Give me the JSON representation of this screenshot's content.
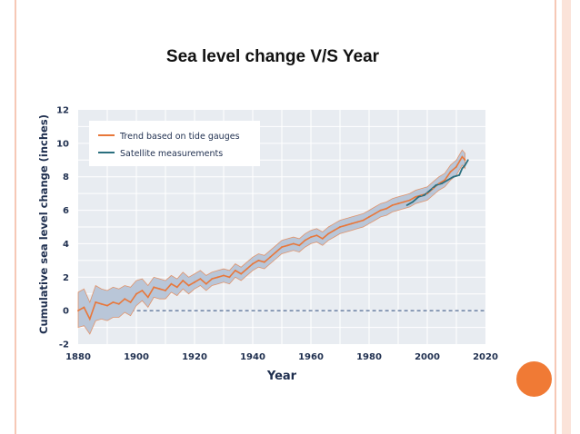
{
  "slide": {
    "title": "Sea level change V/S Year"
  },
  "colors": {
    "trend": "#e8773a",
    "band": "#b9c6d8",
    "satellite": "#2a6f7e",
    "plot_bg": "#e8ecf1",
    "grid": "#ffffff",
    "baseline": "#2b4a7a",
    "accent": "#f07a35",
    "border": "#f6c8b6"
  },
  "chart_data": {
    "type": "line",
    "title": "",
    "xlabel": "Year",
    "ylabel": "Cumulative sea level change (inches)",
    "xlim": [
      1880,
      2020
    ],
    "ylim": [
      -2,
      12
    ],
    "xticks": [
      1880,
      1900,
      1920,
      1940,
      1960,
      1980,
      2000,
      2020
    ],
    "yticks": [
      -2,
      0,
      2,
      4,
      6,
      8,
      10,
      12
    ],
    "grid": true,
    "legend_position": "top-left",
    "baseline": 0,
    "series": [
      {
        "name": "Trend based on tide gauges",
        "x": [
          1880,
          1882,
          1884,
          1886,
          1888,
          1890,
          1892,
          1894,
          1896,
          1898,
          1900,
          1902,
          1904,
          1906,
          1908,
          1910,
          1912,
          1914,
          1916,
          1918,
          1920,
          1922,
          1924,
          1926,
          1928,
          1930,
          1932,
          1934,
          1936,
          1938,
          1940,
          1942,
          1944,
          1946,
          1948,
          1950,
          1952,
          1954,
          1956,
          1958,
          1960,
          1962,
          1964,
          1966,
          1968,
          1970,
          1972,
          1974,
          1976,
          1978,
          1980,
          1982,
          1984,
          1986,
          1988,
          1990,
          1992,
          1994,
          1996,
          1998,
          2000,
          2002,
          2004,
          2006,
          2008,
          2010,
          2012,
          2013
        ],
        "values": [
          0.0,
          0.2,
          -0.5,
          0.5,
          0.4,
          0.3,
          0.5,
          0.4,
          0.7,
          0.5,
          1.0,
          1.2,
          0.8,
          1.4,
          1.3,
          1.2,
          1.6,
          1.4,
          1.8,
          1.5,
          1.7,
          1.9,
          1.6,
          1.9,
          2.0,
          2.1,
          2.0,
          2.4,
          2.2,
          2.5,
          2.8,
          3.0,
          2.9,
          3.2,
          3.5,
          3.8,
          3.9,
          4.0,
          3.9,
          4.2,
          4.4,
          4.5,
          4.3,
          4.6,
          4.8,
          5.0,
          5.1,
          5.2,
          5.3,
          5.4,
          5.6,
          5.8,
          6.0,
          6.1,
          6.3,
          6.4,
          6.5,
          6.6,
          6.8,
          6.9,
          7.0,
          7.3,
          7.6,
          7.8,
          8.3,
          8.6,
          9.2,
          9.0
        ],
        "lower": [
          -1.0,
          -0.9,
          -1.4,
          -0.6,
          -0.5,
          -0.6,
          -0.4,
          -0.4,
          -0.1,
          -0.3,
          0.3,
          0.6,
          0.2,
          0.8,
          0.7,
          0.7,
          1.1,
          0.9,
          1.3,
          1.0,
          1.3,
          1.5,
          1.2,
          1.5,
          1.6,
          1.7,
          1.6,
          2.0,
          1.8,
          2.1,
          2.4,
          2.6,
          2.5,
          2.8,
          3.1,
          3.4,
          3.5,
          3.6,
          3.5,
          3.8,
          4.0,
          4.1,
          3.9,
          4.2,
          4.4,
          4.6,
          4.7,
          4.8,
          4.9,
          5.0,
          5.2,
          5.4,
          5.6,
          5.7,
          5.9,
          6.0,
          6.1,
          6.2,
          6.4,
          6.5,
          6.6,
          6.9,
          7.2,
          7.4,
          7.8,
          8.1,
          8.7,
          8.5
        ],
        "upper": [
          1.1,
          1.3,
          0.5,
          1.5,
          1.3,
          1.2,
          1.4,
          1.3,
          1.5,
          1.4,
          1.8,
          1.9,
          1.5,
          2.0,
          1.9,
          1.8,
          2.1,
          1.9,
          2.3,
          2.0,
          2.2,
          2.4,
          2.1,
          2.3,
          2.4,
          2.5,
          2.4,
          2.8,
          2.6,
          2.9,
          3.2,
          3.4,
          3.3,
          3.6,
          3.9,
          4.2,
          4.3,
          4.4,
          4.3,
          4.6,
          4.8,
          4.9,
          4.7,
          5.0,
          5.2,
          5.4,
          5.5,
          5.6,
          5.7,
          5.8,
          6.0,
          6.2,
          6.4,
          6.5,
          6.7,
          6.8,
          6.9,
          7.0,
          7.2,
          7.3,
          7.4,
          7.7,
          8.0,
          8.2,
          8.7,
          9.0,
          9.6,
          9.4
        ]
      },
      {
        "name": "Satellite measurements",
        "x": [
          1993,
          1995,
          1997,
          1999,
          2001,
          2003,
          2005,
          2007,
          2009,
          2011,
          2012,
          2013,
          2014
        ],
        "values": [
          6.3,
          6.5,
          6.8,
          6.9,
          7.2,
          7.5,
          7.6,
          7.8,
          8.0,
          8.1,
          8.5,
          8.7,
          9.0
        ]
      }
    ]
  }
}
